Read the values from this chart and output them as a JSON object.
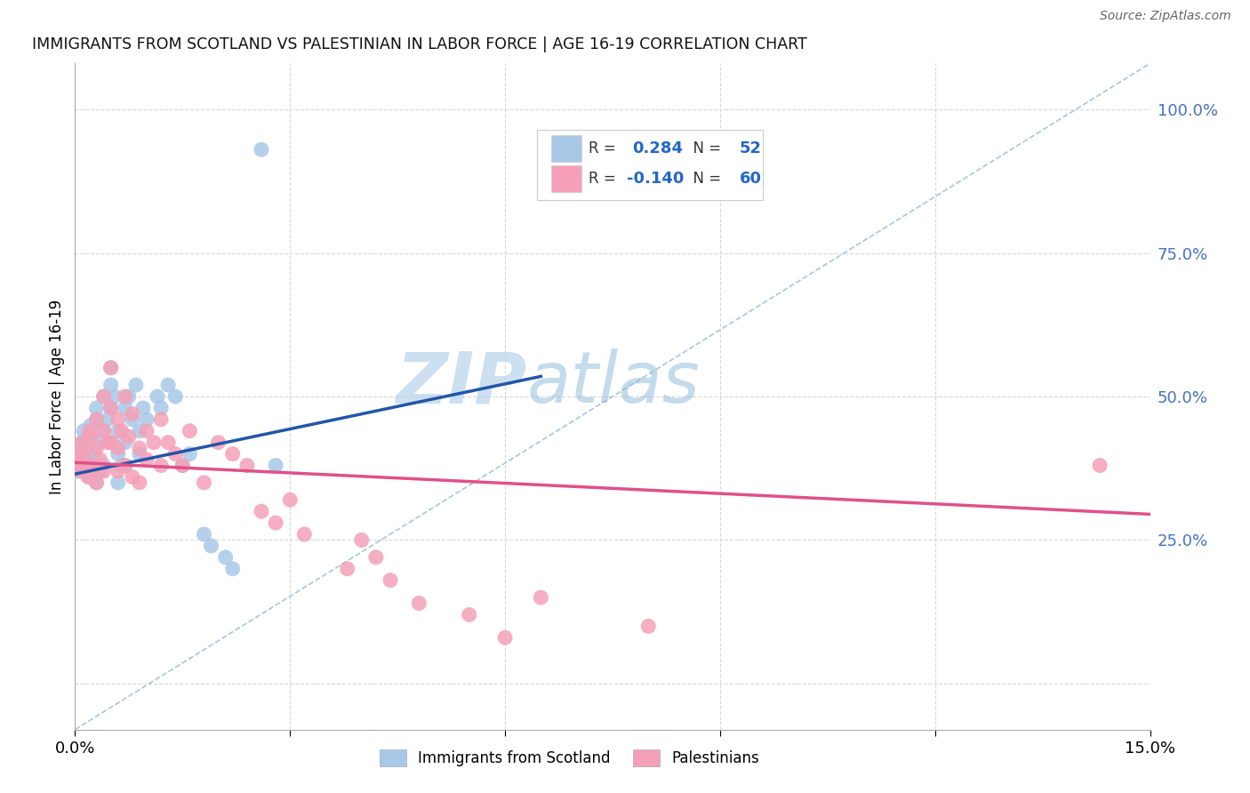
{
  "title": "IMMIGRANTS FROM SCOTLAND VS PALESTINIAN IN LABOR FORCE | AGE 16-19 CORRELATION CHART",
  "source": "Source: ZipAtlas.com",
  "ylabel": "In Labor Force | Age 16-19",
  "ytick_values": [
    0.0,
    0.25,
    0.5,
    0.75,
    1.0
  ],
  "ytick_labels": [
    "",
    "25.0%",
    "50.0%",
    "75.0%",
    "100.0%"
  ],
  "xmin": 0.0,
  "xmax": 0.15,
  "ymin": -0.08,
  "ymax": 1.08,
  "legend_R_scotland": "0.284",
  "legend_N_scotland": "52",
  "legend_R_palestinian": "-0.140",
  "legend_N_palestinian": "60",
  "color_scotland": "#a8c8e8",
  "color_scotland_line": "#2255aa",
  "color_palestinian": "#f5a0b8",
  "color_palestinian_line": "#e0508a",
  "watermark_color": "#c8e0f0",
  "grid_color": "#d8d8d8",
  "scotland_x": [
    0.0002,
    0.0005,
    0.0008,
    0.001,
    0.0012,
    0.0015,
    0.0018,
    0.002,
    0.002,
    0.0022,
    0.0025,
    0.0025,
    0.003,
    0.003,
    0.003,
    0.0032,
    0.0035,
    0.004,
    0.004,
    0.004,
    0.0045,
    0.005,
    0.005,
    0.005,
    0.005,
    0.0055,
    0.006,
    0.006,
    0.006,
    0.0065,
    0.007,
    0.007,
    0.007,
    0.0075,
    0.008,
    0.0085,
    0.009,
    0.009,
    0.0095,
    0.01,
    0.0115,
    0.012,
    0.013,
    0.014,
    0.015,
    0.016,
    0.018,
    0.019,
    0.021,
    0.022,
    0.026,
    0.028
  ],
  "scotland_y": [
    0.37,
    0.4,
    0.38,
    0.42,
    0.44,
    0.41,
    0.39,
    0.43,
    0.36,
    0.45,
    0.38,
    0.4,
    0.46,
    0.48,
    0.35,
    0.42,
    0.37,
    0.5,
    0.44,
    0.38,
    0.46,
    0.55,
    0.52,
    0.48,
    0.42,
    0.5,
    0.44,
    0.4,
    0.35,
    0.38,
    0.48,
    0.42,
    0.38,
    0.5,
    0.46,
    0.52,
    0.44,
    0.4,
    0.48,
    0.46,
    0.5,
    0.48,
    0.52,
    0.5,
    0.38,
    0.4,
    0.26,
    0.24,
    0.22,
    0.2,
    0.93,
    0.38
  ],
  "palestinian_x": [
    0.0002,
    0.0005,
    0.0008,
    0.001,
    0.0012,
    0.0015,
    0.0018,
    0.002,
    0.002,
    0.0022,
    0.0025,
    0.003,
    0.003,
    0.003,
    0.0035,
    0.004,
    0.004,
    0.004,
    0.0045,
    0.005,
    0.005,
    0.005,
    0.006,
    0.006,
    0.006,
    0.0065,
    0.007,
    0.007,
    0.0075,
    0.008,
    0.008,
    0.009,
    0.009,
    0.01,
    0.01,
    0.011,
    0.012,
    0.012,
    0.013,
    0.014,
    0.015,
    0.016,
    0.018,
    0.02,
    0.022,
    0.024,
    0.026,
    0.028,
    0.03,
    0.032,
    0.038,
    0.04,
    0.042,
    0.044,
    0.048,
    0.055,
    0.06,
    0.065,
    0.08,
    0.143
  ],
  "palestinian_y": [
    0.38,
    0.4,
    0.37,
    0.42,
    0.39,
    0.41,
    0.36,
    0.44,
    0.38,
    0.43,
    0.37,
    0.46,
    0.41,
    0.35,
    0.39,
    0.5,
    0.44,
    0.37,
    0.42,
    0.48,
    0.55,
    0.42,
    0.46,
    0.41,
    0.37,
    0.44,
    0.5,
    0.38,
    0.43,
    0.47,
    0.36,
    0.41,
    0.35,
    0.44,
    0.39,
    0.42,
    0.46,
    0.38,
    0.42,
    0.4,
    0.38,
    0.44,
    0.35,
    0.42,
    0.4,
    0.38,
    0.3,
    0.28,
    0.32,
    0.26,
    0.2,
    0.25,
    0.22,
    0.18,
    0.14,
    0.12,
    0.08,
    0.15,
    0.1,
    0.38
  ],
  "scot_line_x0": 0.0,
  "scot_line_y0": 0.365,
  "scot_line_x1": 0.065,
  "scot_line_y1": 0.535,
  "pal_line_x0": 0.0,
  "pal_line_y0": 0.385,
  "pal_line_x1": 0.15,
  "pal_line_y1": 0.295
}
